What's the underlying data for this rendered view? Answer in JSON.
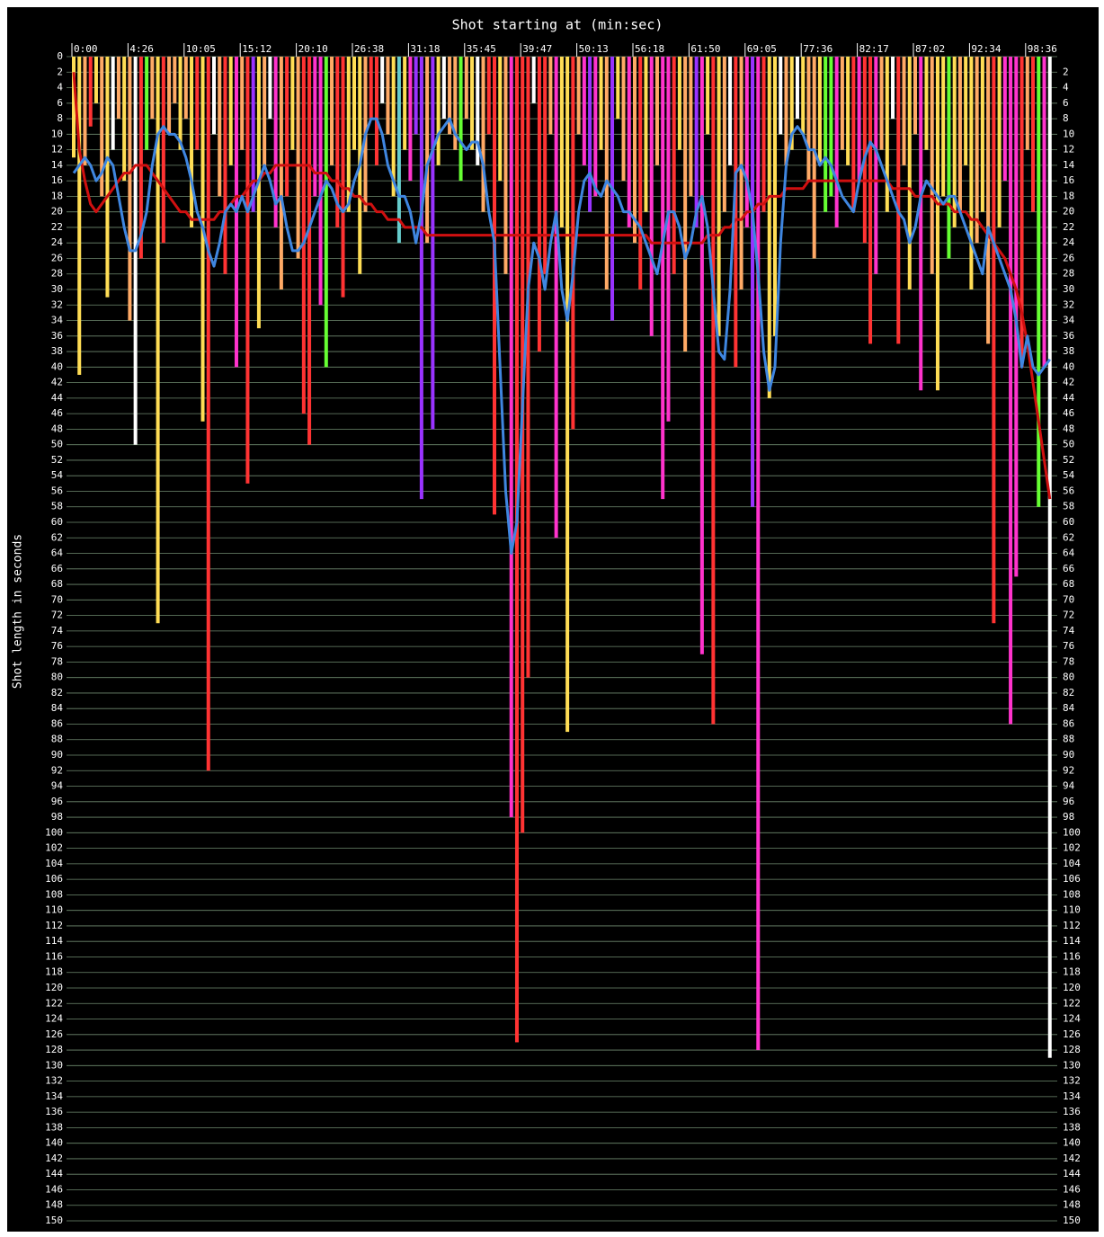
{
  "chart_data": {
    "type": "bar",
    "title": "Shot starting at (min:sec)",
    "ylabel": "Shot length in seconds",
    "yaxis_inverted": true,
    "grid": true,
    "grid_color": "#6f8a6f",
    "background": "#000000",
    "ylim": [
      0,
      150
    ],
    "yticks": [
      0,
      2,
      4,
      6,
      8,
      10,
      12,
      14,
      16,
      18,
      20,
      22,
      24,
      26,
      28,
      30,
      32,
      34,
      36,
      38,
      40,
      42,
      44,
      46,
      48,
      50,
      52,
      54,
      56,
      58,
      60,
      62,
      64,
      66,
      68,
      70,
      72,
      74,
      76,
      78,
      80,
      82,
      84,
      86,
      88,
      90,
      92,
      94,
      96,
      98,
      100,
      102,
      104,
      106,
      108,
      110,
      112,
      114,
      116,
      118,
      120,
      122,
      124,
      126,
      128,
      130,
      132,
      134,
      136,
      138,
      140,
      142,
      144,
      146,
      148,
      150
    ],
    "categories": [
      "0:00",
      null,
      null,
      null,
      null,
      null,
      null,
      null,
      null,
      null,
      "4:26",
      null,
      null,
      null,
      null,
      null,
      null,
      null,
      null,
      null,
      "10:05",
      null,
      null,
      null,
      null,
      null,
      null,
      null,
      null,
      null,
      "15:12",
      null,
      null,
      null,
      null,
      null,
      null,
      null,
      null,
      null,
      "20:10",
      null,
      null,
      null,
      null,
      null,
      null,
      null,
      null,
      null,
      "26:38",
      null,
      null,
      null,
      null,
      null,
      null,
      null,
      null,
      null,
      "31:18",
      null,
      null,
      null,
      null,
      null,
      null,
      null,
      null,
      null,
      "35:45",
      null,
      null,
      null,
      null,
      null,
      null,
      null,
      null,
      null,
      "39:47",
      null,
      null,
      null,
      null,
      null,
      null,
      null,
      null,
      null,
      "50:13",
      null,
      null,
      null,
      null,
      null,
      null,
      null,
      null,
      null,
      "56:18",
      null,
      null,
      null,
      null,
      null,
      null,
      null,
      null,
      null,
      "61:50",
      null,
      null,
      null,
      null,
      null,
      null,
      null,
      null,
      null,
      "69:05",
      null,
      null,
      null,
      null,
      null,
      null,
      null,
      null,
      null,
      "77:36",
      null,
      null,
      null,
      null,
      null,
      null,
      null,
      null,
      null,
      "82:17",
      null,
      null,
      null,
      null,
      null,
      null,
      null,
      null,
      null,
      "87:02",
      null,
      null,
      null,
      null,
      null,
      null,
      null,
      null,
      null,
      "92:34",
      null,
      null,
      null,
      null,
      null,
      null,
      null,
      null,
      null,
      "98:36",
      null,
      null,
      null,
      null
    ],
    "values": [
      13,
      41,
      14,
      9,
      6,
      18,
      31,
      12,
      8,
      16,
      34,
      50,
      26,
      12,
      8,
      73,
      24,
      10,
      6,
      12,
      8,
      22,
      12,
      47,
      92,
      10,
      18,
      28,
      14,
      40,
      12,
      55,
      20,
      35,
      14,
      8,
      22,
      30,
      18,
      12,
      26,
      46,
      50,
      18,
      32,
      40,
      14,
      22,
      31,
      20,
      12,
      28,
      20,
      8,
      14,
      6,
      10,
      18,
      24,
      12,
      16,
      10,
      57,
      24,
      48,
      14,
      8,
      10,
      12,
      16,
      8,
      12,
      14,
      20,
      10,
      59,
      16,
      28,
      98,
      127,
      100,
      80,
      6,
      38,
      28,
      10,
      62,
      22,
      87,
      48,
      10,
      14,
      20,
      18,
      12,
      30,
      34,
      8,
      16,
      22,
      24,
      30,
      20,
      36,
      14,
      57,
      47,
      28,
      12,
      38,
      18,
      22,
      77,
      10,
      86,
      36,
      20,
      14,
      40,
      30,
      22,
      58,
      128,
      20,
      44,
      36,
      10,
      14,
      12,
      8,
      10,
      16,
      26,
      14,
      20,
      18,
      22,
      12,
      14,
      20,
      16,
      24,
      37,
      28,
      12,
      20,
      8,
      37,
      14,
      30,
      10,
      43,
      12,
      28,
      43,
      18,
      26,
      22,
      20,
      14,
      30,
      24,
      20,
      37,
      73,
      22,
      16,
      86,
      67,
      40,
      12,
      20,
      58,
      40,
      129
    ],
    "colors": [
      "#fd5",
      "#fd5",
      "#fa6",
      "#f33",
      "#fd5",
      "#fa6",
      "#fd5",
      "#fff",
      "#fa6",
      "#fd5",
      "#fa6",
      "#fff",
      "#f33",
      "#6f3",
      "#fa6",
      "#fd5",
      "#f33",
      "#fa6",
      "#fa6",
      "#fd5",
      "#fa6",
      "#fd5",
      "#f33",
      "#fd5",
      "#f33",
      "#fff",
      "#fa6",
      "#f33",
      "#fd5",
      "#f3c",
      "#fa6",
      "#f33",
      "#93f",
      "#fd5",
      "#fa6",
      "#fff",
      "#f3c",
      "#fa6",
      "#f33",
      "#fd5",
      "#fa6",
      "#f33",
      "#f33",
      "#f3c",
      "#f3c",
      "#6f3",
      "#fa6",
      "#f33",
      "#f33",
      "#fd5",
      "#fd5",
      "#fd5",
      "#fa6",
      "#f33",
      "#f33",
      "#fff",
      "#fa6",
      "#fd5",
      "#6cc",
      "#fd5",
      "#f3c",
      "#93f",
      "#93f",
      "#fa6",
      "#93f",
      "#fd5",
      "#fff",
      "#fa6",
      "#fa6",
      "#6f3",
      "#fa6",
      "#fd5",
      "#fff",
      "#fa6",
      "#f33",
      "#f33",
      "#fd5",
      "#fa6",
      "#f3c",
      "#f33",
      "#f33",
      "#f33",
      "#fff",
      "#f33",
      "#f33",
      "#fa6",
      "#f3c",
      "#fd5",
      "#fd5",
      "#f33",
      "#fa6",
      "#f3c",
      "#93f",
      "#f3c",
      "#fd5",
      "#fa6",
      "#93f",
      "#fd5",
      "#fa6",
      "#f3c",
      "#fa6",
      "#f33",
      "#fd5",
      "#f3c",
      "#fa6",
      "#f3c",
      "#f3c",
      "#f33",
      "#fd5",
      "#fa6",
      "#fa6",
      "#93f",
      "#f3c",
      "#fd5",
      "#f33",
      "#fd5",
      "#fa6",
      "#fff",
      "#f33",
      "#fa6",
      "#f3c",
      "#93f",
      "#f3c",
      "#f33",
      "#fd5",
      "#fd5",
      "#fff",
      "#fa6",
      "#fd5",
      "#fff",
      "#fd5",
      "#fa6",
      "#fa6",
      "#fd5",
      "#6f3",
      "#6f3",
      "#f3c",
      "#fa6",
      "#fd5",
      "#f33",
      "#f3c",
      "#f33",
      "#f33",
      "#f3c",
      "#fa6",
      "#fd5",
      "#fff",
      "#f33",
      "#fa6",
      "#fd5",
      "#fa6",
      "#f3c",
      "#fd5",
      "#fa6",
      "#fd5",
      "#fd5",
      "#6f3",
      "#fd5",
      "#fa6",
      "#fd5",
      "#fd5",
      "#fa6",
      "#fd5",
      "#fa6",
      "#f33",
      "#fd5",
      "#f3c",
      "#f3c",
      "#f3c",
      "#f33",
      "#fa6",
      "#f33",
      "#6f3",
      "#f3c",
      "#fff"
    ],
    "lines": [
      {
        "color": "#d01010",
        "values": [
          2,
          12,
          16,
          19,
          20,
          19,
          18,
          17,
          16,
          15,
          15,
          14,
          14,
          14,
          15,
          16,
          17,
          18,
          19,
          20,
          20,
          21,
          21,
          21,
          21,
          21,
          20,
          20,
          19,
          18,
          18,
          17,
          16,
          16,
          15,
          15,
          14,
          14,
          14,
          14,
          14,
          14,
          14,
          15,
          15,
          15,
          16,
          16,
          17,
          17,
          18,
          18,
          19,
          19,
          20,
          20,
          21,
          21,
          21,
          22,
          22,
          22,
          22,
          23,
          23,
          23,
          23,
          23,
          23,
          23,
          23,
          23,
          23,
          23,
          23,
          23,
          23,
          23,
          23,
          23,
          23,
          23,
          23,
          23,
          23,
          23,
          23,
          23,
          23,
          23,
          23,
          23,
          23,
          23,
          23,
          23,
          23,
          23,
          23,
          23,
          23,
          23,
          23,
          24,
          24,
          24,
          24,
          24,
          24,
          24,
          24,
          24,
          24,
          23,
          23,
          23,
          22,
          22,
          21,
          21,
          20,
          20,
          19,
          19,
          18,
          18,
          18,
          17,
          17,
          17,
          17,
          16,
          16,
          16,
          16,
          16,
          16,
          16,
          16,
          16,
          16,
          16,
          16,
          16,
          16,
          16,
          17,
          17,
          17,
          17,
          18,
          18,
          18,
          18,
          19,
          19,
          19,
          20,
          20,
          20,
          21,
          21,
          22,
          23,
          24,
          25,
          26,
          28,
          30,
          33,
          37,
          42,
          47,
          52,
          57
        ]
      },
      {
        "color": "#3f86e0",
        "values": [
          15,
          14,
          13,
          14,
          16,
          15,
          13,
          14,
          18,
          22,
          25,
          25,
          23,
          20,
          14,
          10,
          9,
          10,
          10,
          11,
          13,
          16,
          20,
          22,
          25,
          27,
          24,
          20,
          19,
          20,
          18,
          20,
          18,
          16,
          14,
          16,
          19,
          18,
          22,
          25,
          25,
          24,
          22,
          20,
          18,
          16,
          17,
          19,
          20,
          19,
          16,
          14,
          10,
          8,
          8,
          10,
          14,
          16,
          18,
          18,
          20,
          24,
          20,
          14,
          12,
          10,
          9,
          8,
          10,
          11,
          12,
          11,
          11,
          14,
          20,
          24,
          40,
          56,
          64,
          60,
          45,
          30,
          24,
          26,
          30,
          24,
          20,
          30,
          34,
          28,
          20,
          16,
          15,
          17,
          18,
          16,
          17,
          18,
          20,
          20,
          21,
          22,
          24,
          26,
          28,
          24,
          20,
          20,
          22,
          26,
          24,
          20,
          18,
          22,
          30,
          38,
          39,
          30,
          15,
          14,
          16,
          20,
          28,
          38,
          43,
          40,
          24,
          14,
          10,
          9,
          10,
          12,
          12,
          14,
          13,
          14,
          16,
          18,
          19,
          20,
          16,
          13,
          11,
          12,
          14,
          16,
          18,
          20,
          21,
          24,
          22,
          18,
          16,
          17,
          18,
          19,
          18,
          18,
          20,
          22,
          24,
          26,
          28,
          22,
          24,
          26,
          28,
          30,
          34,
          40,
          36,
          40,
          41,
          40,
          39
        ]
      }
    ]
  }
}
